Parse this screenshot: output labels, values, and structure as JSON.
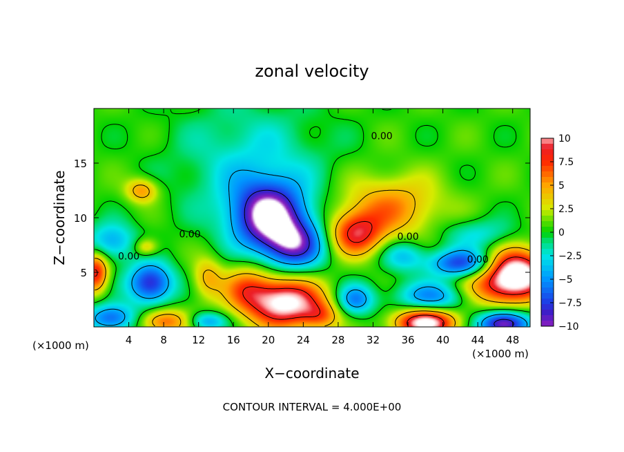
{
  "chart_data": {
    "type": "heatmap",
    "title": "zonal velocity",
    "xlabel": "X−coordinate",
    "ylabel": "Z−coordinate",
    "x_unit_left": "(×1000 m)",
    "x_unit_right": "(×1000 m)",
    "footer": "CONTOUR INTERVAL = 4.000E+00",
    "xlim": [
      0,
      50
    ],
    "ylim": [
      0,
      20
    ],
    "x_ticks": [
      4,
      8,
      12,
      16,
      20,
      24,
      28,
      32,
      36,
      40,
      44,
      48
    ],
    "x_tick_labels": [
      "4",
      "8",
      "12",
      "16",
      "20",
      "24",
      "28",
      "32",
      "36",
      "40",
      "44",
      "48"
    ],
    "y_ticks": [
      5,
      10,
      15
    ],
    "y_tick_labels": [
      "5",
      "10",
      "15"
    ],
    "colorbar": {
      "range": [
        -10,
        10
      ],
      "ticks": [
        10,
        7.5,
        5,
        2.5,
        0,
        -2.5,
        -5,
        -7.5,
        -10
      ],
      "tick_labels": [
        "10",
        "7.5",
        "5",
        "2.5",
        "0",
        "−2.5",
        "−5",
        "−7.5",
        "−10"
      ]
    },
    "contour_labels": [
      "0.00",
      "0.00",
      "0.00",
      "0.00",
      "0.00"
    ],
    "contour_label_positions": [
      [
        33,
        17.5
      ],
      [
        11,
        8.5
      ],
      [
        4,
        6.5
      ],
      [
        36,
        8.3
      ],
      [
        44,
        6.2
      ]
    ],
    "features": [
      {
        "x": 20,
        "z": 10.2,
        "value": -11,
        "sx": 3.0,
        "sz": 2.2
      },
      {
        "x": 23,
        "z": 7.5,
        "value": -8,
        "sx": 2.5,
        "sz": 1.6
      },
      {
        "x": 18,
        "z": 15,
        "value": -3,
        "sx": 6.0,
        "sz": 4.0
      },
      {
        "x": 22,
        "z": 2.2,
        "value": 11,
        "sx": 3.0,
        "sz": 1.6
      },
      {
        "x": 17.5,
        "z": 3.5,
        "value": 5,
        "sx": 2.0,
        "sz": 1.5
      },
      {
        "x": 30,
        "z": 8.5,
        "value": 7.5,
        "sx": 2.2,
        "sz": 1.4
      },
      {
        "x": 34,
        "z": 11,
        "value": 5,
        "sx": 4.0,
        "sz": 2.0
      },
      {
        "x": 48.5,
        "z": 5,
        "value": 11,
        "sx": 2.5,
        "sz": 1.5
      },
      {
        "x": 46,
        "z": 3.5,
        "value": 5,
        "sx": 3.5,
        "sz": 1.3
      },
      {
        "x": 38,
        "z": 0.4,
        "value": 11,
        "sx": 2.5,
        "sz": 0.9
      },
      {
        "x": 47,
        "z": 0.3,
        "value": -11,
        "sx": 2.0,
        "sz": 0.8
      },
      {
        "x": 39,
        "z": 2.8,
        "value": -6,
        "sx": 3.0,
        "sz": 1.0
      },
      {
        "x": 42,
        "z": 5.8,
        "value": -8,
        "sx": 2.5,
        "sz": 0.9
      },
      {
        "x": 6.5,
        "z": 4,
        "value": -9,
        "sx": 1.8,
        "sz": 1.3
      },
      {
        "x": 2,
        "z": 7.8,
        "value": -5,
        "sx": 2.0,
        "sz": 1.2
      },
      {
        "x": 0.2,
        "z": 5,
        "value": 8,
        "sx": 1.0,
        "sz": 1.3
      },
      {
        "x": 8,
        "z": 0.5,
        "value": 6,
        "sx": 2.0,
        "sz": 0.8
      },
      {
        "x": 2,
        "z": 0.8,
        "value": -7,
        "sx": 2.0,
        "sz": 0.9
      },
      {
        "x": 5.5,
        "z": 12.5,
        "value": 5,
        "sx": 1.3,
        "sz": 0.8
      },
      {
        "x": 13,
        "z": 4.5,
        "value": 4,
        "sx": 1.2,
        "sz": 1.3
      },
      {
        "x": 26,
        "z": 1.0,
        "value": 4,
        "sx": 1.5,
        "sz": 0.9
      },
      {
        "x": 30,
        "z": 2.5,
        "value": -6,
        "sx": 1.5,
        "sz": 1.0
      },
      {
        "x": 13,
        "z": 0.5,
        "value": -5,
        "sx": 1.5,
        "sz": 0.6
      },
      {
        "x": 35.5,
        "z": 6.5,
        "value": -4,
        "sx": 1.8,
        "sz": 1.0
      },
      {
        "x": 44,
        "z": 8.5,
        "value": -3,
        "sx": 3.0,
        "sz": 1.0
      },
      {
        "x": 6,
        "z": 7.3,
        "value": 4,
        "sx": 1.0,
        "sz": 0.6
      }
    ]
  }
}
